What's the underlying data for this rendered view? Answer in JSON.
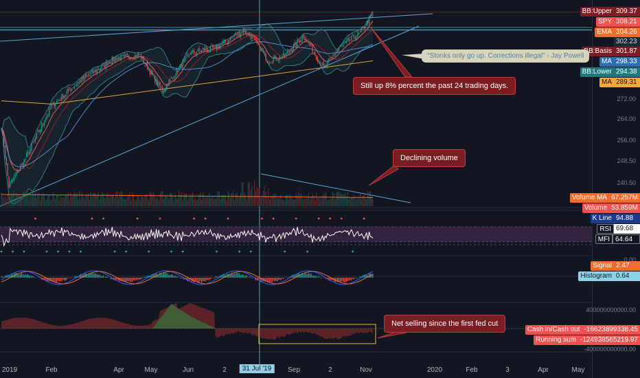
{
  "colors": {
    "background": "#131722",
    "up": "#26a69a",
    "down": "#ef5350",
    "bb_band": "#2e7d84",
    "bb_basis": "#9c1c25",
    "ema": "#ef5350",
    "ma": "#4f86c6",
    "ma_long": "#e4a43a",
    "trendline": "#55a7d6",
    "rsi": "#ffffff",
    "mfi_fill": "#4a2c52",
    "cash_pos": "#3b6b3a",
    "cash_neg": "#7a2a2a",
    "box": "#c89a32"
  },
  "labels": {
    "bb_upper": {
      "name": "BB:Upper",
      "value": "309.37",
      "bg": "#7d1c24"
    },
    "spy": {
      "name": "SPY",
      "value": "308.21",
      "bg": "#ef5350"
    },
    "ema": {
      "name": "EMA",
      "value": "304.26",
      "bg": "#f26d2d"
    },
    "plain": {
      "name": "",
      "value": "302.23",
      "bg": "#1f2a38"
    },
    "bb_basis": {
      "name": "BB:Basis",
      "value": "301.87",
      "bg": "#7d1c24"
    },
    "ma": {
      "name": "MA",
      "value": "298.33",
      "bg": "#2d6fb5"
    },
    "bb_lower": {
      "name": "BB:Lower",
      "value": "294.38",
      "bg": "#1f7a7e"
    },
    "ma_long": {
      "name": "MA",
      "value": "289.31",
      "bg": "#f2a93b"
    },
    "volume_ma": {
      "name": "Volume MA",
      "value": "67.257M",
      "bg": "#f26d2d"
    },
    "volume": {
      "name": "Volume",
      "value": "53.859M",
      "bg": "#ef5350"
    },
    "k_line": {
      "name": "K Line",
      "value": "94.88",
      "bg": "#1e3a8a"
    },
    "rsi": {
      "name": "RSI",
      "value": "69.68",
      "bg": "#131722"
    },
    "mfi": {
      "name": "MFI",
      "value": "64.64",
      "bg": "#131722"
    },
    "signal": {
      "name": "Signal",
      "value": "2.47",
      "bg": "#f26d2d"
    },
    "histogram": {
      "name": "Histogram",
      "value": "0.64",
      "bg": "#8fd1e6"
    },
    "cash": {
      "name": "Cash in/Cash out",
      "value": "-16623899338.45",
      "bg": "#ef5350"
    },
    "running_sum": {
      "name": "Running sum",
      "value": "-124938565219.97",
      "bg": "#ef5350"
    }
  },
  "price_ticks": [
    "272.00",
    "264.00",
    "256.00",
    "248.50",
    "240.50"
  ],
  "osc_ticks": [
    "0.00"
  ],
  "cash_ticks": [
    "400000000000.00",
    "-400000000000.00"
  ],
  "annotations": {
    "quote": "\"Stonks only go up. Corrections illegal\" - Jay Powell",
    "up": "Still up 8% percent the past 24 trading days.",
    "volume": "Declining volume",
    "selling": "Net selling since the first fed cut"
  },
  "x_axis": {
    "ticks": [
      "2019",
      "Feb",
      "Apr",
      "May",
      "Jun",
      "2",
      "Sep",
      "2",
      "Nov",
      "2020",
      "Feb",
      "3",
      "Apr",
      "May"
    ],
    "crosshair_date": "31 Jul '19"
  },
  "chart_data": {
    "type": "candlestick",
    "title": "",
    "symbol": "SPY",
    "y_range": [
      232,
      312
    ],
    "anchors": [
      {
        "x": 0,
        "y": 264
      },
      {
        "x": 6,
        "y": 240
      },
      {
        "x": 18,
        "y": 250
      },
      {
        "x": 40,
        "y": 272
      },
      {
        "x": 60,
        "y": 281
      },
      {
        "x": 90,
        "y": 291
      },
      {
        "x": 110,
        "y": 292
      },
      {
        "x": 128,
        "y": 278
      },
      {
        "x": 150,
        "y": 293
      },
      {
        "x": 170,
        "y": 295
      },
      {
        "x": 192,
        "y": 302
      },
      {
        "x": 198,
        "y": 300
      },
      {
        "x": 212,
        "y": 290
      },
      {
        "x": 225,
        "y": 292
      },
      {
        "x": 240,
        "y": 300
      },
      {
        "x": 256,
        "y": 287
      },
      {
        "x": 268,
        "y": 295
      },
      {
        "x": 285,
        "y": 301
      },
      {
        "x": 295,
        "y": 309
      }
    ],
    "n_bars": 296,
    "last_close": 308.21,
    "crosshair_bar": 205,
    "volume_ma": 67.257,
    "volume_last": 53.859,
    "k_line_last": 94.88,
    "rsi_last": 69.68,
    "mfi_last": 64.64,
    "signal_last": 2.47,
    "histogram_last": 0.64,
    "cash_last": -16623899338.45,
    "running_sum_last": -124938565219.97,
    "grid": false,
    "legend": "right"
  }
}
